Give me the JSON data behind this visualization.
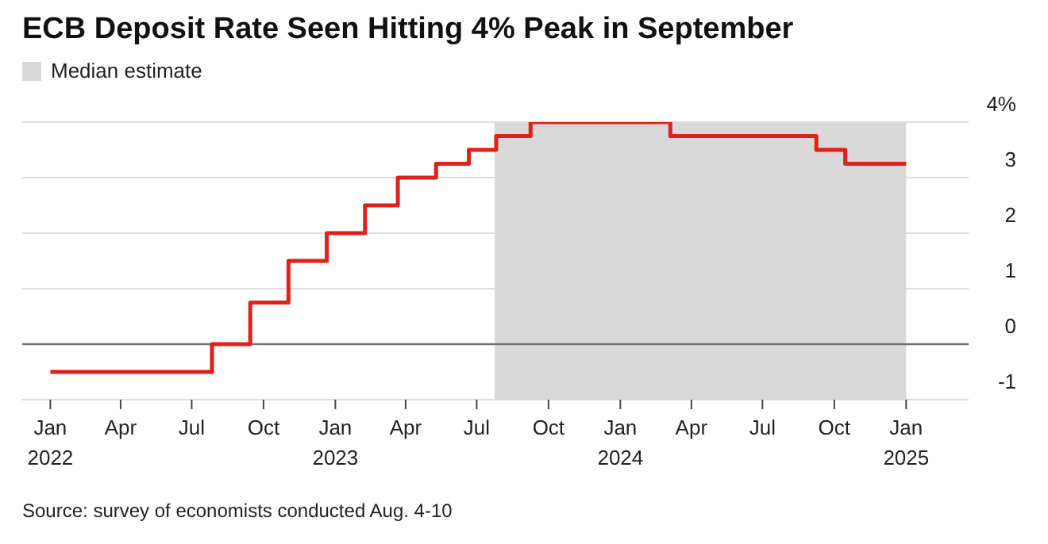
{
  "chart_data": {
    "type": "step",
    "title": "ECB Deposit Rate Seen Hitting 4% Peak in September",
    "x": [
      "2022-01-01",
      "2022-07-27",
      "2022-09-14",
      "2022-11-02",
      "2022-12-21",
      "2023-02-08",
      "2023-03-22",
      "2023-05-10",
      "2023-06-21",
      "2023-07-26",
      "2023-09-08",
      "2024-03-05",
      "2024-09-08",
      "2024-10-15",
      "2025-01-01"
    ],
    "series": [
      {
        "color": "#e0201b",
        "values": [
          -0.5,
          0,
          0.75,
          1.5,
          2,
          2.5,
          3,
          3.25,
          3.5,
          3.75,
          4,
          3.75,
          3.5,
          3.25,
          3.25
        ]
      }
    ],
    "xlim": [
      "2021-11-26",
      "2025-03-22"
    ],
    "xticks": [
      {
        "value": "2022-01",
        "label": "Jan 2022"
      },
      {
        "value": "2022-04",
        "label": "Apr"
      },
      {
        "value": "2022-07",
        "label": "Jul"
      },
      {
        "value": "2022-10",
        "label": "Oct"
      },
      {
        "value": "2023-01",
        "label": "Jan 2023"
      },
      {
        "value": "2023-04",
        "label": "Apr"
      },
      {
        "value": "2023-07",
        "label": "Jul"
      },
      {
        "value": "2023-10",
        "label": "Oct"
      },
      {
        "value": "2024-01",
        "label": "Jan 2024"
      },
      {
        "value": "2024-04",
        "label": "Apr"
      },
      {
        "value": "2024-07",
        "label": "Jul"
      },
      {
        "value": "2024-10",
        "label": "Oct"
      },
      {
        "value": "2025-01",
        "label": "Jan 2025"
      }
    ],
    "ylim": [
      -1,
      4
    ],
    "yticks": [
      -1,
      0,
      1,
      2,
      3,
      {
        "value": 4,
        "label": "4%"
      }
    ],
    "bands": [
      {
        "axis": "x",
        "from": "2023-07-24",
        "to": "2025-01-01",
        "label": "Median estimate",
        "color": "#d9d9d9"
      }
    ],
    "ref_lines": [
      {
        "axis": "y",
        "value": 0,
        "color": "#707070"
      }
    ],
    "grid": "y",
    "legend": "top left",
    "line_style": "solid",
    "marker": "none",
    "annotations": [
      "Source: survey of economists conducted Aug. 4-10"
    ]
  }
}
